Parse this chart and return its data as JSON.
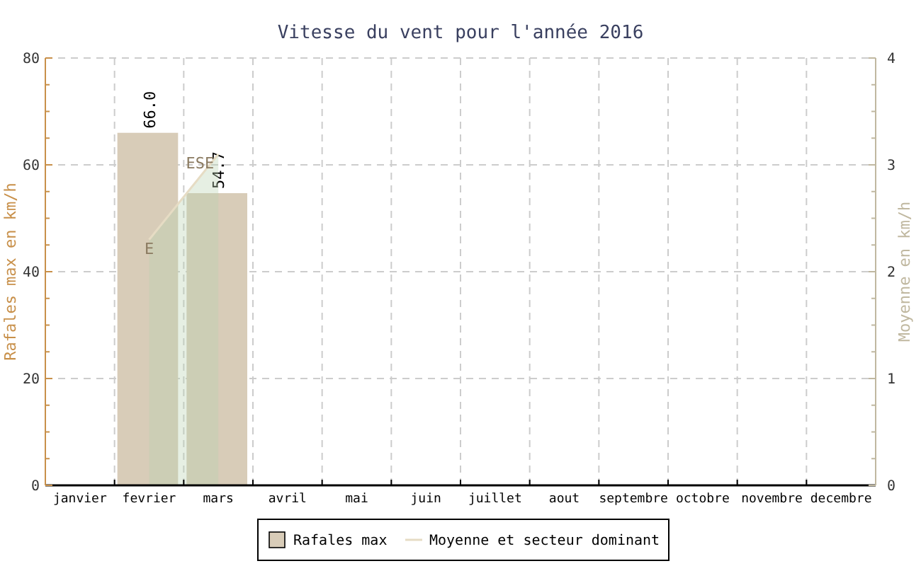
{
  "chart_data": {
    "type": "bar",
    "title": "Vitesse du vent pour l'année 2016",
    "ylabel": "Rafales max en km/h",
    "y2label": "Moyenne en km/h",
    "categories": [
      "janvier",
      "fevrier",
      "mars",
      "avril",
      "mai",
      "juin",
      "juillet",
      "aout",
      "septembre",
      "octobre",
      "novembre",
      "decembre"
    ],
    "series": [
      {
        "name": "Rafales max",
        "color": "#d8ccb8",
        "values": [
          null,
          66.0,
          54.7,
          null,
          null,
          null,
          null,
          null,
          null,
          null,
          null,
          null
        ],
        "value_labels": [
          null,
          "66.0",
          "54.7",
          null,
          null,
          null,
          null,
          null,
          null,
          null,
          null,
          null
        ]
      },
      {
        "name": "Moyenne et secteur dominant",
        "type": "area",
        "axis": "y2",
        "color": "#e6dcc4",
        "values": [
          null,
          2.3,
          3.1,
          null,
          null,
          null,
          null,
          null,
          null,
          null,
          null,
          null
        ]
      }
    ],
    "annotations": [
      {
        "text": "E",
        "x": "fevrier",
        "y": 46
      },
      {
        "text": "ESE",
        "x": "mars",
        "y": 62
      }
    ],
    "ylim": [
      0,
      80
    ],
    "yticks": [
      0,
      {
        "value": 5,
        "label": null
      },
      {
        "value": 10,
        "label": null
      },
      {
        "value": 15,
        "label": null
      },
      20,
      {
        "value": 25,
        "label": null
      },
      {
        "value": 30,
        "label": null
      },
      {
        "value": 35,
        "label": null
      },
      40,
      {
        "value": 45,
        "label": null
      },
      {
        "value": 50,
        "label": null
      },
      {
        "value": 55,
        "label": null
      },
      60,
      {
        "value": 65,
        "label": null
      },
      {
        "value": 70,
        "label": null
      },
      {
        "value": 75,
        "label": null
      },
      80
    ],
    "y2lim": [
      0,
      4
    ],
    "y2ticks": [
      0,
      {
        "value": 0.25,
        "label": null
      },
      {
        "value": 0.5,
        "label": null
      },
      {
        "value": 0.75,
        "label": null
      },
      1,
      {
        "value": 1.25,
        "label": null
      },
      {
        "value": 1.5,
        "label": null
      },
      {
        "value": 1.75,
        "label": null
      },
      2,
      {
        "value": 2.25,
        "label": null
      },
      {
        "value": 2.5,
        "label": null
      },
      {
        "value": 2.75,
        "label": null
      },
      3,
      {
        "value": 3.25,
        "label": null
      },
      {
        "value": 3.5,
        "label": null
      },
      {
        "value": 3.75,
        "label": null
      },
      4
    ],
    "grid": true,
    "legend": "bottom"
  }
}
